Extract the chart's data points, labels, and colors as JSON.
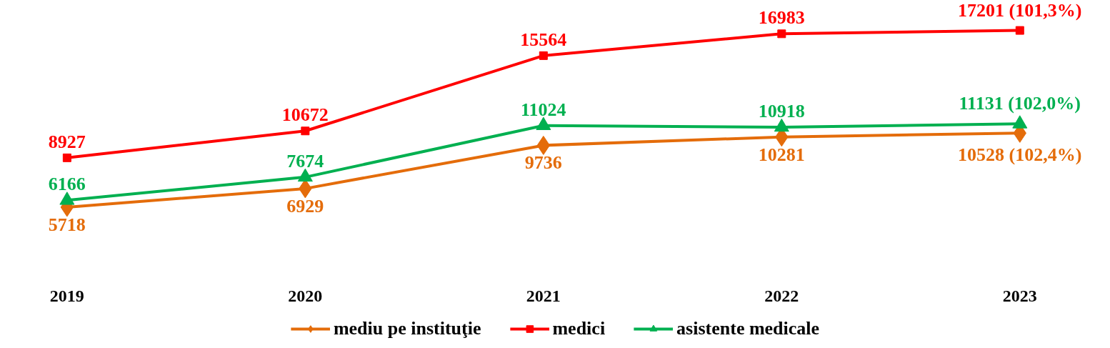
{
  "chart_data": {
    "type": "line",
    "categories": [
      "2019",
      "2020",
      "2021",
      "2022",
      "2023"
    ],
    "tick_labels": "x",
    "legend": "bottom",
    "series": [
      {
        "name": "mediu pe instituţie",
        "color": "#e46c0a",
        "marker": "diamond",
        "values": [
          5718,
          6929,
          9736,
          10281,
          10528
        ],
        "value_labels": [
          "5718",
          "6929",
          "9736",
          "10281",
          "10528 (102,4%)"
        ]
      },
      {
        "name": "medici",
        "color": "#ff0000",
        "marker": "square",
        "values": [
          8927,
          10672,
          15564,
          16983,
          17201
        ],
        "value_labels": [
          "8927",
          "10672",
          "15564",
          "16983",
          "17201 (101,3%)"
        ]
      },
      {
        "name": "asistente medicale",
        "color": "#00b050",
        "marker": "triangle",
        "values": [
          6166,
          7674,
          11024,
          10918,
          11131
        ],
        "value_labels": [
          "6166",
          "7674",
          "11024",
          "10918",
          "11131 (102,0%)"
        ]
      }
    ]
  }
}
